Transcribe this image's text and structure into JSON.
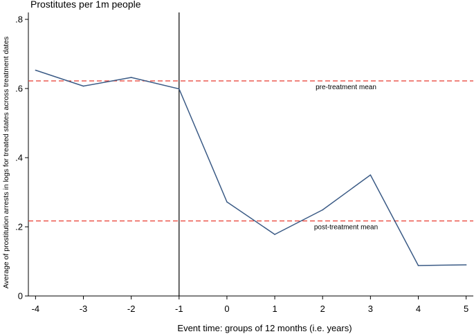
{
  "chart_data": {
    "type": "line",
    "title": "Prostitutes per 1m people",
    "xlabel": "Event time: groups of 12 months (i.e. years)",
    "ylabel": "Average of prostitution arrests in logs for treated states across treatment dates",
    "x": [
      -4,
      -3,
      -2,
      -1,
      0,
      1,
      2,
      3,
      4,
      5
    ],
    "series": [
      {
        "values": [
          0.653,
          0.607,
          0.632,
          0.599,
          0.272,
          0.178,
          0.249,
          0.35,
          0.088,
          0.09
        ]
      }
    ],
    "xticks": [
      "-4",
      "-3",
      "-2",
      "-1",
      "0",
      "1",
      "2",
      "3",
      "4",
      "5"
    ],
    "yticks": [
      {
        "value": 0,
        "label": "0"
      },
      {
        "value": 0.2,
        "label": ".2"
      },
      {
        "value": 0.4,
        "label": ".4"
      },
      {
        "value": 0.6,
        "label": ".6"
      },
      {
        "value": 0.8,
        "label": ".8"
      }
    ],
    "xlim": [
      -4.15,
      5.15
    ],
    "ylim": [
      0,
      0.82
    ],
    "grid": false,
    "reference_lines": [
      {
        "value": 0.622,
        "label": "pre-treatment mean",
        "style": "dashed",
        "color": "#e8392f"
      },
      {
        "value": 0.217,
        "label": "post-treatment mean",
        "style": "dashed",
        "color": "#e8392f"
      }
    ],
    "vertical_line": {
      "x": -1,
      "color": "#000000"
    },
    "series_color": "#3a5a85"
  }
}
